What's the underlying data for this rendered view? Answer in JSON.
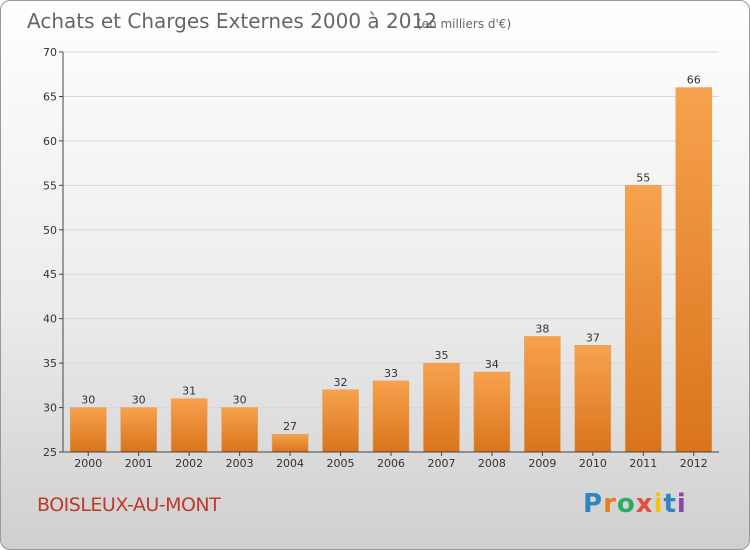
{
  "chart_data": {
    "type": "bar",
    "title": "Achats et Charges Externes 2000 à 2012",
    "subtitle": "(en milliers d'€)",
    "categories": [
      "2000",
      "2001",
      "2002",
      "2003",
      "2004",
      "2005",
      "2006",
      "2007",
      "2008",
      "2009",
      "2010",
      "2011",
      "2012"
    ],
    "values": [
      30,
      30,
      31,
      30,
      27,
      32,
      33,
      35,
      34,
      38,
      37,
      55,
      66
    ],
    "ylim": [
      25,
      70
    ],
    "yticks": [
      25,
      30,
      35,
      40,
      45,
      50,
      55,
      60,
      65,
      70
    ],
    "grid": true,
    "bar_color": "#f28c28"
  },
  "footer": {
    "commune": "BOISLEUX-AU-MONT",
    "logo_letters": [
      "P",
      "r",
      "o",
      "x",
      "i",
      "t",
      "i"
    ],
    "logo_colors": [
      "#2e86c1",
      "#e67e22",
      "#27ae60",
      "#e74c3c",
      "#f1c40f",
      "#2e86c1",
      "#8e44ad"
    ]
  }
}
